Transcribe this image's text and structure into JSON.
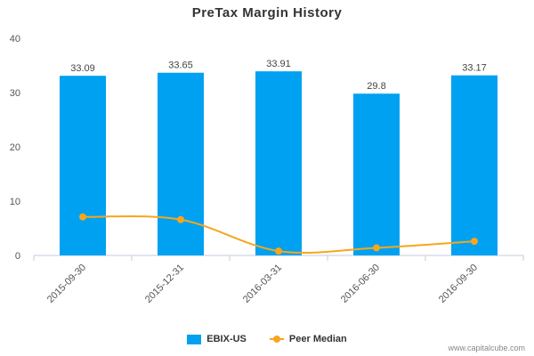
{
  "chart_data": {
    "type": "bar",
    "title": "PreTax Margin History",
    "categories": [
      "2015-09-30",
      "2015-12-31",
      "2016-03-31",
      "2016-06-30",
      "2016-09-30"
    ],
    "series": [
      {
        "name": "EBIX-US",
        "kind": "bar",
        "values": [
          33.09,
          33.65,
          33.91,
          29.8,
          33.17
        ],
        "labels": [
          "33.09",
          "33.65",
          "33.91",
          "29.8",
          "33.17"
        ],
        "color": "#00a1f1"
      },
      {
        "name": "Peer Median",
        "kind": "line",
        "values": [
          7.1,
          6.6,
          0.8,
          1.4,
          2.6
        ],
        "color": "#f7a61c"
      }
    ],
    "ylim": [
      0,
      40
    ],
    "yticks": [
      "0",
      "10",
      "20",
      "30",
      "40"
    ],
    "grid": false,
    "legend": "bottom"
  },
  "footer": {
    "credit": "www.capitalcube.com"
  }
}
